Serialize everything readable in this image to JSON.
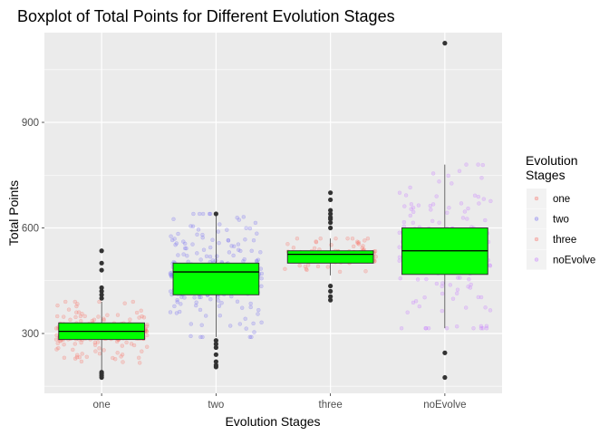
{
  "chart_data": {
    "type": "boxplot",
    "title": "Boxplot of Total Points for Different Evolution Stages",
    "xlabel": "Evolution Stages",
    "ylabel": "Total Points",
    "categories": [
      "one",
      "two",
      "three",
      "noEvolve"
    ],
    "y_ticks": [
      300,
      600,
      900
    ],
    "ylim": [
      130,
      1155
    ],
    "grid": true,
    "legend": {
      "title_lines": [
        "Evolution",
        "Stages"
      ],
      "placement": "right",
      "entries": [
        "one",
        "two",
        "three",
        "noEvolve"
      ]
    },
    "box_fill": "#00ff00",
    "point_colors": {
      "one": "#f8766d",
      "two": "#7b74f0",
      "three": "#f8766d",
      "noEvolve": "#c77cff"
    },
    "boxes": [
      {
        "category": "one",
        "whisker_low": 180,
        "q1": 283,
        "median": 306,
        "q3": 330,
        "whisker_high": 390,
        "outliers": [
          175,
          180,
          185,
          190,
          400,
          410,
          420,
          430,
          480,
          500,
          535
        ]
      },
      {
        "category": "two",
        "whisker_low": 290,
        "q1": 410,
        "median": 475,
        "q3": 500,
        "whisker_high": 640,
        "outliers": [
          205,
          210,
          220,
          240,
          260,
          270,
          280,
          640
        ]
      },
      {
        "category": "three",
        "whisker_low": 465,
        "q1": 500,
        "median": 525,
        "q3": 535,
        "whisker_high": 570,
        "outliers": [
          395,
          405,
          420,
          435,
          600,
          615,
          625,
          630,
          640,
          650,
          680,
          700
        ]
      },
      {
        "category": "noEvolve",
        "whisker_low": 315,
        "q1": 468,
        "median": 535,
        "q3": 600,
        "whisker_high": 780,
        "outliers": [
          175,
          245,
          1125
        ]
      }
    ]
  }
}
